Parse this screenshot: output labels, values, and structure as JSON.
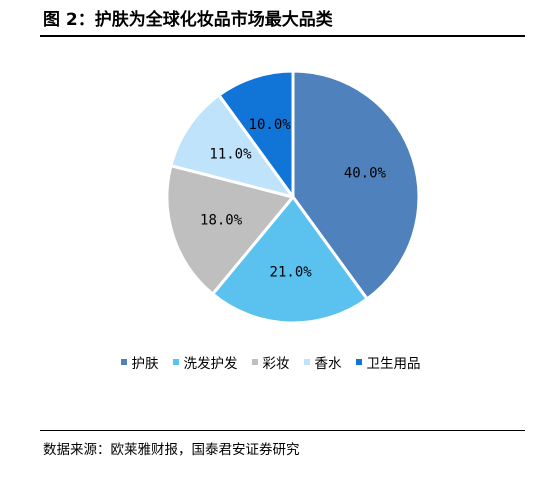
{
  "header": {
    "title": "图 2：护肤为全球化妆品市场最大品类"
  },
  "footer": {
    "source": "数据来源：欧莱雅财报，国泰君安证券研究"
  },
  "chart_data": {
    "type": "pie",
    "title": "",
    "categories": [
      "护肤",
      "洗发护发",
      "彩妆",
      "香水",
      "卫生用品"
    ],
    "values": [
      40.0,
      21.0,
      18.0,
      11.0,
      10.0
    ],
    "labels": [
      "40.0%",
      "21.0%",
      "18.0%",
      "11.0%",
      "10.0%"
    ],
    "colors": [
      "#4f81bd",
      "#5bc1ef",
      "#bfbfbf",
      "#bfe3fa",
      "#1174d7"
    ],
    "start_angle_deg": 0,
    "direction": "clockwise",
    "legend_position": "bottom"
  }
}
